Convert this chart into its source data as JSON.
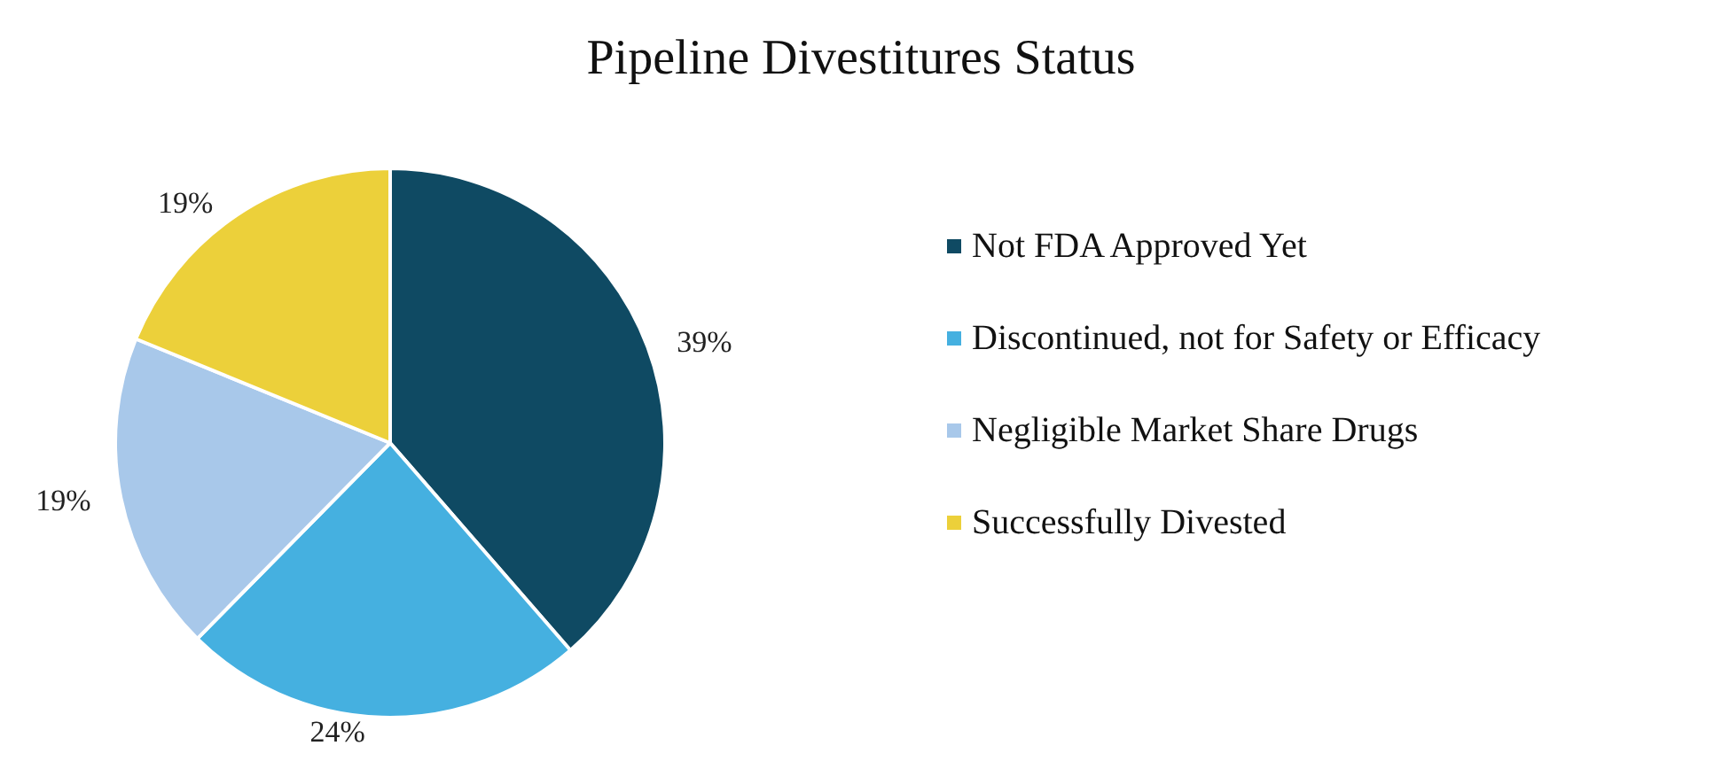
{
  "chart_data": {
    "type": "pie",
    "title": "Pipeline Divestitures Status",
    "categories": [
      "Not FDA Approved Yet",
      "Discontinued, not for Safety or Efficacy",
      "Negligible Market Share Drugs",
      "Successfully Divested"
    ],
    "values": [
      39,
      24,
      19,
      19
    ],
    "colors": [
      "#0f4a63",
      "#45b0e0",
      "#a8c8ea",
      "#ecd03a"
    ],
    "value_labels": [
      "39%",
      "24%",
      "19%",
      "19%"
    ],
    "legend": "right"
  }
}
